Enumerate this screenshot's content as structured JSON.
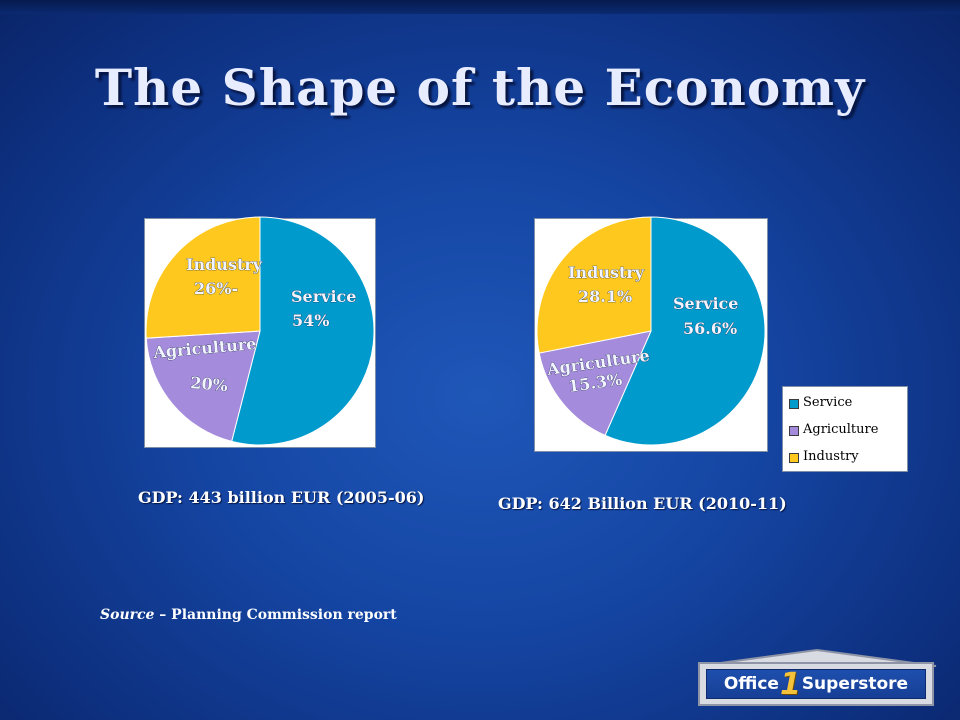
{
  "title": "The Shape of the Economy",
  "colors": {
    "service": "#009ACC",
    "agriculture": "#A58BDB",
    "industry": "#FFC81E"
  },
  "chart_data": [
    {
      "type": "pie",
      "categories": [
        "Service",
        "Agriculture",
        "Industry"
      ],
      "values": [
        54,
        20,
        26
      ],
      "labels": [
        {
          "name": "Service",
          "value": "54%"
        },
        {
          "name": "Agriculture",
          "value": "20%"
        },
        {
          "name": "Industry",
          "value": "26%-"
        }
      ],
      "caption": "GDP: 443 billion EUR (2005-06)"
    },
    {
      "type": "pie",
      "categories": [
        "Service",
        "Agriculture",
        "Industry"
      ],
      "values": [
        56.6,
        15.3,
        28.1
      ],
      "labels": [
        {
          "name": "Service",
          "value": "56.6%"
        },
        {
          "name": "Agriculture",
          "value": "15.3%"
        },
        {
          "name": "Industry",
          "value": "28.1%"
        }
      ],
      "caption": "GDP: 642 Billion EUR (2010-11)",
      "legend": {
        "position": "right",
        "items": [
          "Service",
          "Agriculture",
          "Industry"
        ]
      }
    }
  ],
  "source": {
    "label": "Source",
    "text": " – Planning Commission report"
  },
  "logo": {
    "left": "Office",
    "number": "1",
    "right": "Superstore"
  }
}
